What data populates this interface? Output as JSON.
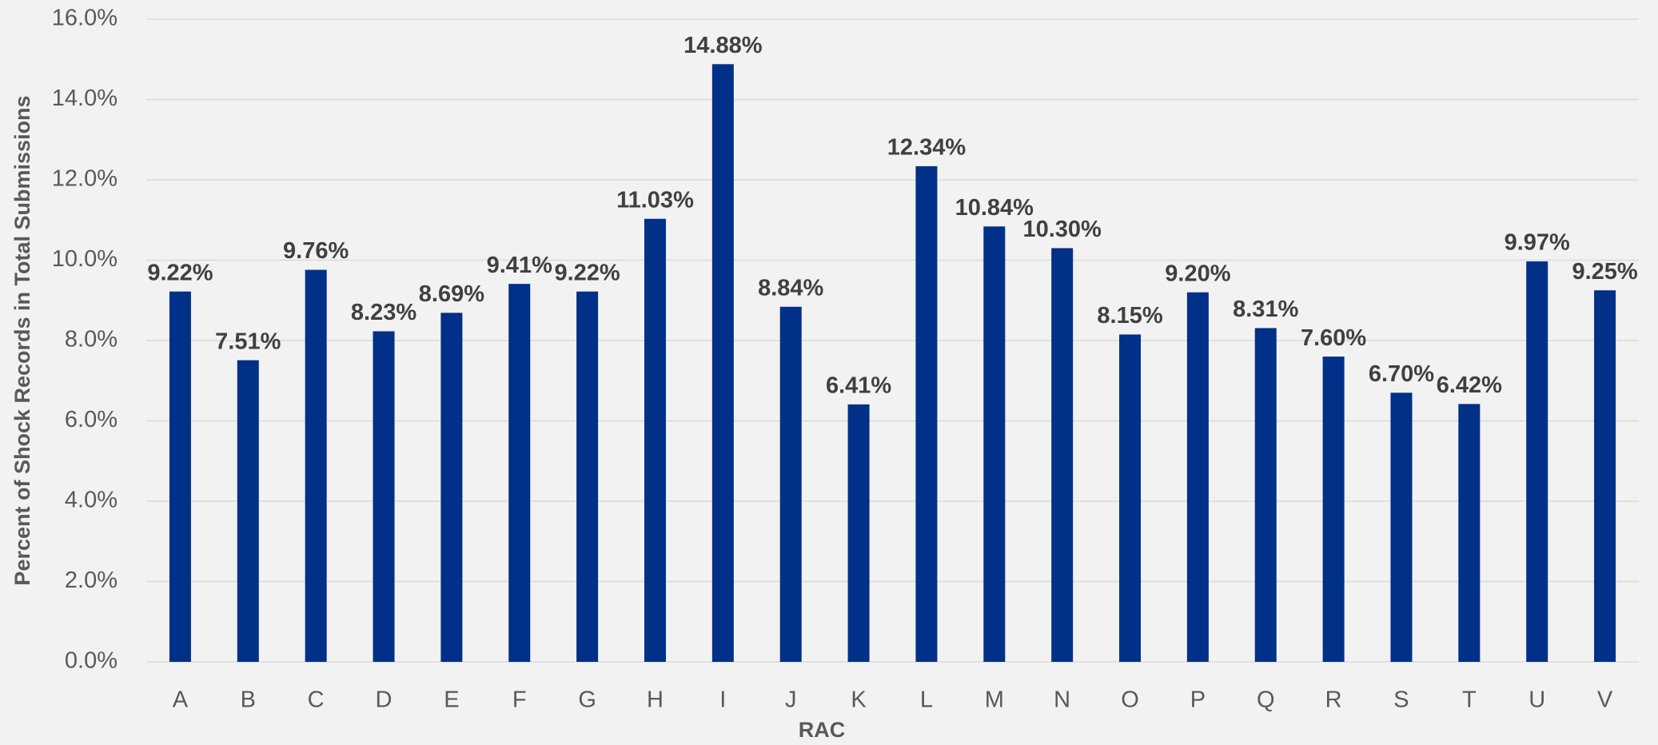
{
  "chart_data": {
    "type": "bar",
    "x_label": "RAC",
    "y_label": "Percent of Shock Records in Total Submissions",
    "categories": [
      "A",
      "B",
      "C",
      "D",
      "E",
      "F",
      "G",
      "H",
      "I",
      "J",
      "K",
      "L",
      "M",
      "N",
      "O",
      "P",
      "Q",
      "R",
      "S",
      "T",
      "U",
      "V"
    ],
    "values": [
      9.22,
      7.51,
      9.76,
      8.23,
      8.69,
      9.41,
      9.22,
      11.03,
      14.88,
      8.84,
      6.41,
      12.34,
      10.84,
      10.3,
      8.15,
      9.2,
      8.31,
      7.6,
      6.7,
      6.42,
      9.97,
      9.25
    ],
    "value_labels": [
      "9.22%",
      "7.51%",
      "9.76%",
      "8.23%",
      "8.69%",
      "9.41%",
      "9.22%",
      "11.03%",
      "14.88%",
      "8.84%",
      "6.41%",
      "12.34%",
      "10.84%",
      "10.30%",
      "8.15%",
      "9.20%",
      "8.31%",
      "7.60%",
      "6.70%",
      "6.42%",
      "9.97%",
      "9.25%"
    ],
    "color": "#003087",
    "ylim": [
      0,
      16
    ],
    "yticks": [
      {
        "value": 0,
        "label": "0.0%"
      },
      {
        "value": 2,
        "label": "2.0%"
      },
      {
        "value": 4,
        "label": "4.0%"
      },
      {
        "value": 6,
        "label": "6.0%"
      },
      {
        "value": 8,
        "label": "8.0%"
      },
      {
        "value": 10,
        "label": "10.0%"
      },
      {
        "value": 12,
        "label": "12.0%"
      },
      {
        "value": 14,
        "label": "14.0%"
      },
      {
        "value": 16,
        "label": "16.0%"
      }
    ],
    "grid": true
  }
}
